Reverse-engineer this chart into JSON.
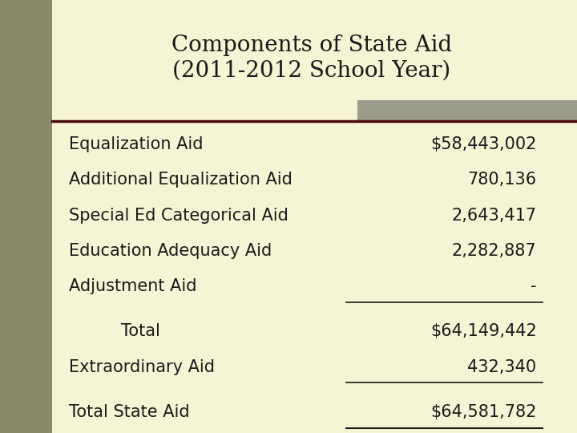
{
  "title": "Components of State Aid\n(2011-2012 School Year)",
  "background_color": "#f5f5d5",
  "left_sidebar_color": "#8b8b6b",
  "header_bar_color": "#9b9b8b",
  "dark_bar_color": "#4a0a0a",
  "rows": [
    {
      "label": "Equalization Aid",
      "value": "$58,443,002",
      "indent": false
    },
    {
      "label": "Additional Equalization Aid",
      "value": "780,136",
      "indent": false
    },
    {
      "label": "Special Ed Categorical Aid",
      "value": "2,643,417",
      "indent": false
    },
    {
      "label": "Education Adequacy Aid",
      "value": "2,282,887",
      "indent": false
    },
    {
      "label": "Adjustment Aid",
      "value": "-",
      "indent": false,
      "underline_value": true
    }
  ],
  "total_row": {
    "label": "Total",
    "value": "$64,149,442",
    "indent": true
  },
  "extraordinary_row": {
    "label": "Extraordinary Aid",
    "value": "432,340",
    "indent": false,
    "underline_value": true
  },
  "final_row": {
    "label": "Total State Aid",
    "value": "$64,581,782",
    "indent": false,
    "underline_both": true
  },
  "title_fontsize": 20,
  "body_fontsize": 15,
  "text_color": "#1a1a1a",
  "title_color": "#1a1a1a"
}
